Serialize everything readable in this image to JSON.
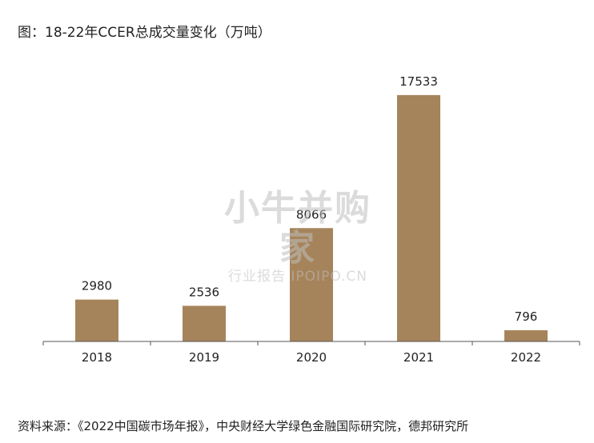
{
  "title": "图：18-22年CCER总成交量变化（万吨）",
  "source": "资料来源：《2022中国碳市场年报》，中央财经大学绿色金融国际研究院，德邦研究所",
  "watermark": {
    "main": "小牛并购家",
    "sub": "行业报告 IPOIPO.CN"
  },
  "colors": {
    "bar": "#a6845b",
    "axis": "#555555",
    "text": "#222222"
  },
  "chart_data": {
    "type": "bar",
    "title": "图：18-22年CCER总成交量变化（万吨）",
    "xlabel": "",
    "ylabel": "",
    "categories": [
      "2018",
      "2019",
      "2020",
      "2021",
      "2022"
    ],
    "values": [
      2980,
      2536,
      8066,
      17533,
      796
    ],
    "ylim": [
      0,
      18950
    ],
    "grid": false,
    "data_labels": true
  }
}
